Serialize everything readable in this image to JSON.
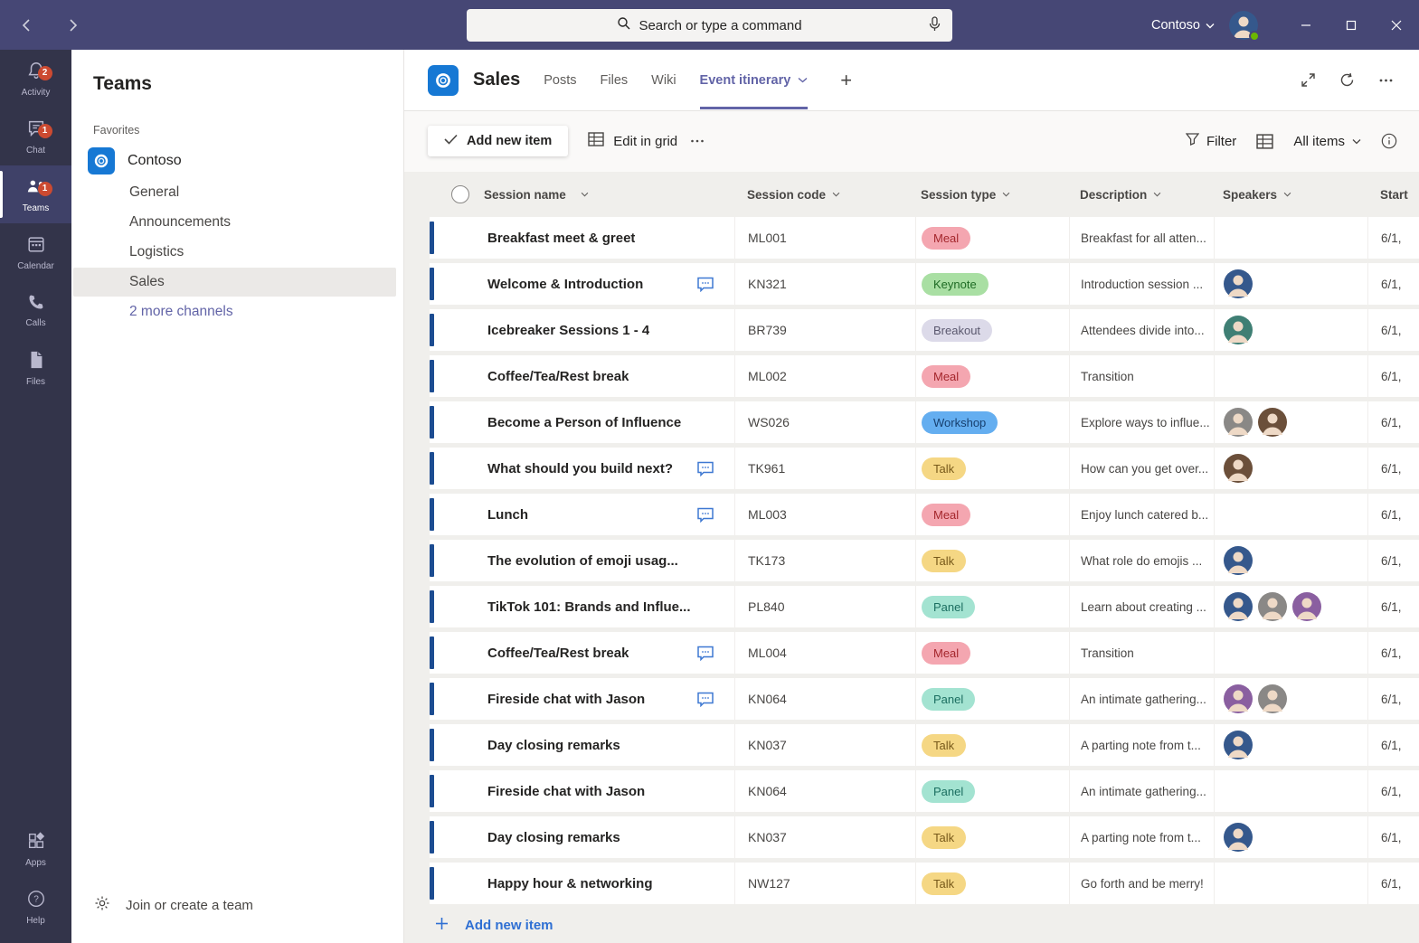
{
  "topbar": {
    "search_placeholder": "Search or type a command",
    "org_switcher": "Contoso"
  },
  "rail": {
    "items": [
      {
        "label": "Activity",
        "badge": "2"
      },
      {
        "label": "Chat",
        "badge": "1"
      },
      {
        "label": "Teams",
        "badge": "1"
      },
      {
        "label": "Calendar"
      },
      {
        "label": "Calls"
      },
      {
        "label": "Files"
      }
    ],
    "bottom_items": [
      {
        "label": "Apps"
      },
      {
        "label": "Help"
      }
    ]
  },
  "sidebar": {
    "title": "Teams",
    "section_label": "Favorites",
    "team_name": "Contoso",
    "channels": [
      "General",
      "Announcements",
      "Logistics",
      "Sales"
    ],
    "active_channel": "Sales",
    "more_link": "2 more channels",
    "join_link": "Join or create a team"
  },
  "channel_header": {
    "team_name": "Sales",
    "tabs": [
      "Posts",
      "Files",
      "Wiki"
    ],
    "active_tab": "Event itinerary"
  },
  "toolbar": {
    "add_new_item": "Add new item",
    "edit_in_grid": "Edit in grid",
    "filter": "Filter",
    "view_selector": "All items"
  },
  "table": {
    "columns": [
      "Session name",
      "Session code",
      "Session type",
      "Description",
      "Speakers",
      "Start"
    ],
    "footer_add": "Add new item",
    "rows": [
      {
        "name": "Breakfast meet & greet",
        "has_comment": false,
        "code": "ML001",
        "type": "Meal",
        "description": "Breakfast for all atten...",
        "speakers": [],
        "start": "6/1,"
      },
      {
        "name": "Welcome & Introduction",
        "has_comment": true,
        "code": "KN321",
        "type": "Keynote",
        "description": "Introduction session ...",
        "speakers": [
          "a"
        ],
        "start": "6/1,"
      },
      {
        "name": "Icebreaker Sessions 1 - 4",
        "has_comment": false,
        "code": "BR739",
        "type": "Breakout",
        "description": "Attendees divide into...",
        "speakers": [
          "d"
        ],
        "start": "6/1,"
      },
      {
        "name": "Coffee/Tea/Rest break",
        "has_comment": false,
        "code": "ML002",
        "type": "Meal",
        "description": "Transition",
        "speakers": [],
        "start": "6/1,"
      },
      {
        "name": "Become a Person of Influence",
        "has_comment": false,
        "code": "WS026",
        "type": "Workshop",
        "description": "Explore ways to influe...",
        "speakers": [
          "b",
          "c"
        ],
        "start": "6/1,"
      },
      {
        "name": "What should you build next?",
        "has_comment": true,
        "code": "TK961",
        "type": "Talk",
        "description": "How can you get over...",
        "speakers": [
          "c"
        ],
        "start": "6/1,"
      },
      {
        "name": "Lunch",
        "has_comment": true,
        "code": "ML003",
        "type": "Meal",
        "description": "Enjoy lunch catered b...",
        "speakers": [],
        "start": "6/1,"
      },
      {
        "name": "The evolution of emoji usag...",
        "has_comment": false,
        "code": "TK173",
        "type": "Talk",
        "description": "What role do emojis ...",
        "speakers": [
          "a"
        ],
        "start": "6/1,"
      },
      {
        "name": "TikTok 101: Brands and Influe...",
        "has_comment": false,
        "code": "PL840",
        "type": "Panel",
        "description": "Learn about creating ...",
        "speakers": [
          "a",
          "b",
          "e"
        ],
        "start": "6/1,"
      },
      {
        "name": "Coffee/Tea/Rest break",
        "has_comment": true,
        "code": "ML004",
        "type": "Meal",
        "description": "Transition",
        "speakers": [],
        "start": "6/1,"
      },
      {
        "name": "Fireside chat with Jason",
        "has_comment": true,
        "code": "KN064",
        "type": "Panel",
        "description": "An intimate gathering...",
        "speakers": [
          "e",
          "b"
        ],
        "start": "6/1,"
      },
      {
        "name": "Day closing remarks",
        "has_comment": false,
        "code": "KN037",
        "type": "Talk",
        "description": "A parting note from t...",
        "speakers": [
          "a"
        ],
        "start": "6/1,"
      },
      {
        "name": "Fireside chat with Jason",
        "has_comment": false,
        "code": "KN064",
        "type": "Panel",
        "description": "An intimate gathering...",
        "speakers": [],
        "start": "6/1,"
      },
      {
        "name": "Day closing remarks",
        "has_comment": false,
        "code": "KN037",
        "type": "Talk",
        "description": "A parting note from t...",
        "speakers": [
          "a"
        ],
        "start": "6/1,"
      },
      {
        "name": "Happy hour & networking",
        "has_comment": false,
        "code": "NW127",
        "type": "Talk",
        "description": "Go forth and be merry!",
        "speakers": [],
        "start": "6/1,"
      }
    ]
  },
  "badge_styles": {
    "Meal": {
      "bg": "#f4a6b0",
      "fg": "#a4262c"
    },
    "Keynote": {
      "bg": "#a9dfa3",
      "fg": "#1e6b24"
    },
    "Breakout": {
      "bg": "#dcdae9",
      "fg": "#5a586e"
    },
    "Workshop": {
      "bg": "#64aef0",
      "fg": "#173f6e"
    },
    "Talk": {
      "bg": "#f5d784",
      "fg": "#77591a"
    },
    "Panel": {
      "bg": "#a3e3d1",
      "fg": "#1b6e60"
    }
  },
  "avatar_palette": {
    "a": "#35588c",
    "b": "#8a8886",
    "c": "#6b4f3a",
    "d": "#3f7f74",
    "e": "#8a5fa0"
  },
  "colors": {
    "topbar": "#464775",
    "rail": "#33344a",
    "accent_purple": "#6264a7",
    "row_bar": "#1c4c91",
    "link_blue": "#2e6fd3",
    "badge_red": "#cc4a31",
    "team_icon_blue": "#1678d4"
  }
}
